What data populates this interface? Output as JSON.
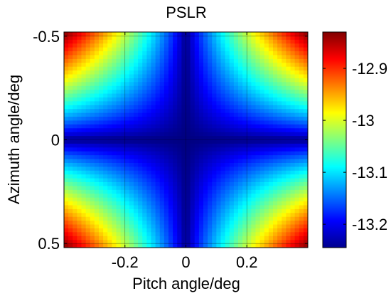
{
  "chart_data": {
    "type": "heatmap",
    "title": "PSLR",
    "xlabel": "Pitch angle/deg",
    "ylabel": "Azimuth angle/deg",
    "xlim": [
      -0.4,
      0.4
    ],
    "ylim": [
      -0.52,
      0.52
    ],
    "y_direction": "reversed",
    "x_ticks": [
      -0.2,
      0,
      0.2
    ],
    "x_tick_labels": [
      "-0.2",
      "0",
      "0.2"
    ],
    "y_ticks": [
      -0.5,
      0,
      0.5
    ],
    "y_tick_labels": [
      "-0.5",
      "0",
      "0.5"
    ],
    "grid": true,
    "colormap": "jet",
    "clim": [
      -13.245,
      -12.83
    ],
    "colorbar": {
      "ticks": [
        -12.9,
        -13,
        -13.1,
        -13.2
      ],
      "tick_labels": [
        "-12.9",
        "-13",
        "-13.1",
        "-13.2"
      ],
      "placement": "right"
    },
    "value_min": -13.245,
    "value_max": -12.83,
    "pattern": "minimum along x=0 and y=0, maximum at the four corners"
  }
}
